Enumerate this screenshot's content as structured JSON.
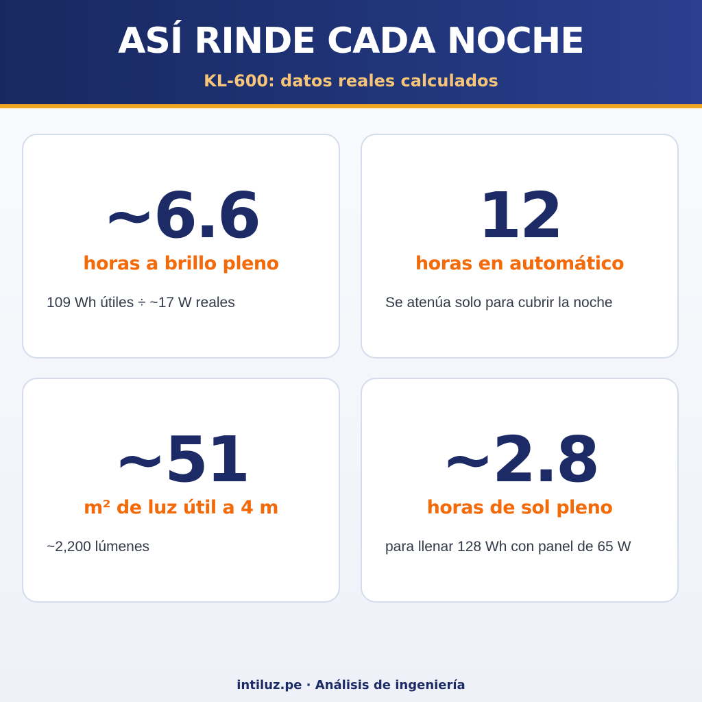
{
  "header": {
    "title": "ASÍ RINDE CADA NOCHE",
    "subtitle": "KL-600: datos reales calculados",
    "accent_color": "#f3a524",
    "background_color": "#1f3376"
  },
  "cards": [
    {
      "value": "~6.6",
      "label": "horas a brillo pleno",
      "description": "109 Wh útiles ÷ ~17 W reales"
    },
    {
      "value": "12",
      "label": "horas en automático",
      "description": "Se atenúa solo para cubrir la noche"
    },
    {
      "value": "~51",
      "label": "m² de luz útil a 4 m",
      "description": "~2,200 lúmenes"
    },
    {
      "value": "~2.8",
      "label": "horas de sol pleno",
      "description": "para llenar 128 Wh con panel de 65 W"
    }
  ],
  "colors": {
    "value_color": "#1c2a66",
    "label_color": "#f26a0a",
    "description_color": "#333a48"
  },
  "footer": {
    "text": "intiluz.pe · Análisis de ingeniería"
  }
}
